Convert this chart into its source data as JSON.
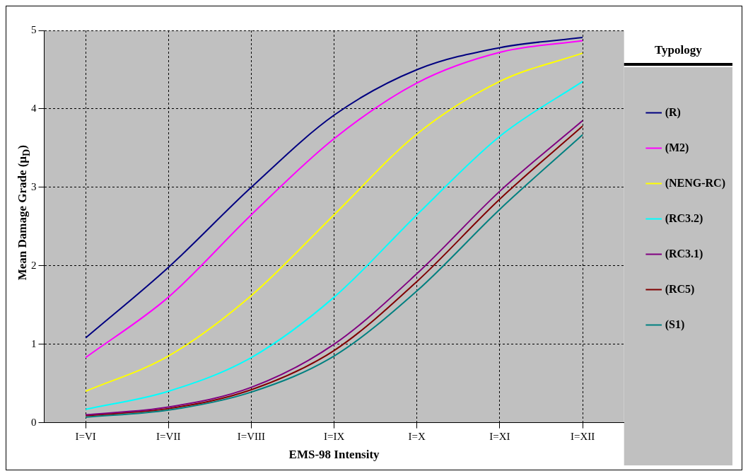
{
  "chart_data": {
    "type": "line",
    "xlabel": "EMS-98 Intensity",
    "ylabel": "Mean Damage Grade (μ$_{D}$)",
    "legend_title": "Typology",
    "categories": [
      "I=VI",
      "I=VII",
      "I=VIII",
      "I=IX",
      "I=X",
      "I=XI",
      "I=XII"
    ],
    "ylim": [
      0,
      5
    ],
    "yticks": [
      0,
      1,
      2,
      3,
      4,
      5
    ],
    "grid": true,
    "legend": "right",
    "marker": "none",
    "line_style": "solid",
    "series": [
      {
        "name": "(R)",
        "color": "#000080",
        "values": [
          1.08,
          1.98,
          3.0,
          3.92,
          4.5,
          4.78,
          4.91
        ]
      },
      {
        "name": "(M2)",
        "color": "#ff00ff",
        "values": [
          0.83,
          1.6,
          2.65,
          3.62,
          4.33,
          4.72,
          4.87
        ]
      },
      {
        "name": "(NENG-RC)",
        "color": "#ffff00",
        "values": [
          0.4,
          0.85,
          1.62,
          2.65,
          3.68,
          4.35,
          4.71
        ]
      },
      {
        "name": "(RC3.2)",
        "color": "#00ffff",
        "values": [
          0.17,
          0.4,
          0.83,
          1.6,
          2.65,
          3.65,
          4.35
        ]
      },
      {
        "name": "(RC3.1)",
        "color": "#800080",
        "values": [
          0.1,
          0.2,
          0.45,
          1.0,
          1.9,
          2.95,
          3.85
        ]
      },
      {
        "name": "(RC5)",
        "color": "#800000",
        "values": [
          0.09,
          0.18,
          0.42,
          0.92,
          1.8,
          2.85,
          3.78
        ]
      },
      {
        "name": "(S1)",
        "color": "#008080",
        "values": [
          0.07,
          0.16,
          0.39,
          0.85,
          1.68,
          2.72,
          3.67
        ]
      }
    ]
  }
}
